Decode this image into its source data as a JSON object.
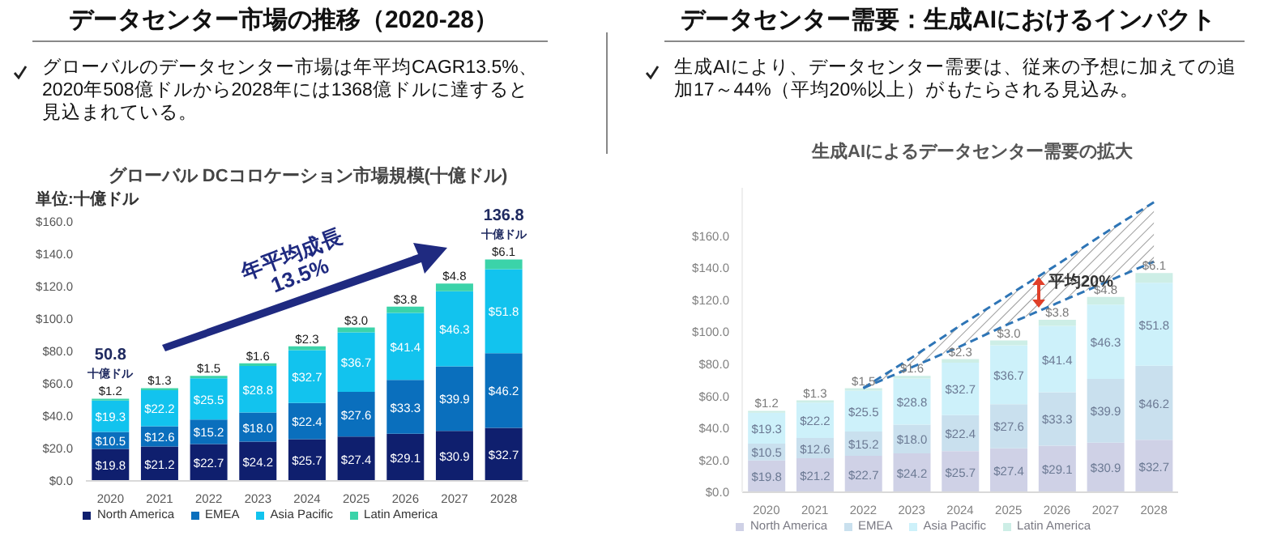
{
  "chart_data": [
    {
      "type": "bar",
      "title": "データセンター市場の推移（2020-28）",
      "subtitle": "グローバル DCコロケーション市場規模(十億ドル)",
      "annotations": [
        "グローバルのデータセンター市場は年平均CAGR13.5%、2020年508億ドルから2028年には1368億ドルに達すると見込まれている。",
        "単位:十億ドル",
        "年平均成長\n13.5%",
        {
          "text": "50.8\n十億ドル",
          "x": "2020",
          "y": 50.8
        },
        {
          "text": "136.8\n十億ドル",
          "x": "2028",
          "y": 136.8
        }
      ],
      "categories": [
        "2020",
        "2021",
        "2022",
        "2023",
        "2024",
        "2025",
        "2026",
        "2027",
        "2028"
      ],
      "stacked": true,
      "legend": "bottom",
      "grid": false,
      "ylim": [
        0,
        160
      ],
      "yticks": [
        {
          "value": 0,
          "label": "$0.0"
        },
        {
          "value": 20,
          "label": "$20.0"
        },
        {
          "value": 40,
          "label": "$40.0"
        },
        {
          "value": 60,
          "label": "$60.0"
        },
        {
          "value": 80,
          "label": "$80.0"
        },
        {
          "value": 100,
          "label": "$100.0"
        },
        {
          "value": 120,
          "label": "$120.0"
        },
        {
          "value": 140,
          "label": "$140.0"
        },
        {
          "value": 160,
          "label": "$160.0"
        }
      ],
      "series": [
        {
          "name": "North America",
          "color": "#0f1f6e",
          "values": [
            19.8,
            21.2,
            22.7,
            24.2,
            25.7,
            27.4,
            29.1,
            30.9,
            32.7
          ],
          "value_labels": [
            "$19.8",
            "$21.2",
            "$22.7",
            "$24.2",
            "$25.7",
            "$27.4",
            "$29.1",
            "$30.9",
            "$32.7"
          ]
        },
        {
          "name": "EMEA",
          "color": "#0a6fbd",
          "values": [
            10.5,
            12.6,
            15.2,
            18.0,
            22.4,
            27.6,
            33.3,
            39.9,
            46.2
          ],
          "value_labels": [
            "$10.5",
            "$12.6",
            "$15.2",
            "$18.0",
            "$22.4",
            "$27.6",
            "$33.3",
            "$39.9",
            "$46.2"
          ]
        },
        {
          "name": "Asia Pacific",
          "color": "#12c3ee",
          "values": [
            19.3,
            22.2,
            25.5,
            28.8,
            32.7,
            36.7,
            41.4,
            46.3,
            51.8
          ],
          "value_labels": [
            "$19.3",
            "$22.2",
            "$25.5",
            "$28.8",
            "$32.7",
            "$36.7",
            "$41.4",
            "$46.3",
            "$51.8"
          ]
        },
        {
          "name": "Latin America",
          "color": "#3bd3a9",
          "values": [
            1.2,
            1.3,
            1.5,
            1.6,
            2.3,
            3.0,
            3.8,
            4.8,
            6.1
          ],
          "value_labels": [
            "$1.2",
            "$1.3",
            "$1.5",
            "$1.6",
            "$2.3",
            "$3.0",
            "$3.8",
            "$4.8",
            "$6.1"
          ]
        }
      ]
    },
    {
      "type": "bar",
      "title": "データセンター需要：生成AIにおけるインパクト",
      "subtitle": "生成AIによるデータセンター需要の拡大",
      "annotations": [
        "生成AIにより、データセンター需要は、従来の予想に加えての追加17～44%（平均20%以上）がもたらされる見込み。",
        "平均20%"
      ],
      "categories": [
        "2020",
        "2021",
        "2022",
        "2023",
        "2024",
        "2025",
        "2026",
        "2027",
        "2028"
      ],
      "stacked": true,
      "legend": "bottom",
      "grid": false,
      "ylim": [
        0,
        190
      ],
      "yticks": [
        {
          "value": 0,
          "label": "$0.0"
        },
        {
          "value": 20,
          "label": "$20.0"
        },
        {
          "value": 40,
          "label": "$40.0"
        },
        {
          "value": 60,
          "label": "$60.0"
        },
        {
          "value": 80,
          "label": "$80.0"
        },
        {
          "value": 100,
          "label": "$100.0"
        },
        {
          "value": 120,
          "label": "$120.0"
        },
        {
          "value": 140,
          "label": "$140.0"
        },
        {
          "value": 160,
          "label": "$160.0"
        }
      ],
      "series": [
        {
          "name": "North America",
          "color": "#cfd1e6",
          "values": [
            19.8,
            21.2,
            22.7,
            24.2,
            25.7,
            27.4,
            29.1,
            30.9,
            32.7
          ],
          "value_labels": [
            "$19.8",
            "$21.2",
            "$22.7",
            "$24.2",
            "$25.7",
            "$27.4",
            "$29.1",
            "$30.9",
            "$32.7"
          ]
        },
        {
          "name": "EMEA",
          "color": "#c9e0ee",
          "values": [
            10.5,
            12.6,
            15.2,
            18.0,
            22.4,
            27.6,
            33.3,
            39.9,
            46.2
          ],
          "value_labels": [
            "$10.5",
            "$12.6",
            "$15.2",
            "$18.0",
            "$22.4",
            "$27.6",
            "$33.3",
            "$39.9",
            "$46.2"
          ]
        },
        {
          "name": "Asia Pacific",
          "color": "#cdf1fa",
          "values": [
            19.3,
            22.2,
            25.5,
            28.8,
            32.7,
            36.7,
            41.4,
            46.3,
            51.8
          ],
          "value_labels": [
            "$19.3",
            "$22.2",
            "$25.5",
            "$28.8",
            "$32.7",
            "$36.7",
            "$41.4",
            "$46.3",
            "$51.8"
          ]
        },
        {
          "name": "Latin America",
          "color": "#cdeee6",
          "values": [
            1.2,
            1.3,
            1.5,
            1.6,
            2.3,
            3.0,
            3.8,
            4.8,
            6.1
          ],
          "value_labels": [
            "$1.2",
            "$1.3",
            "$1.5",
            "$1.6",
            "$2.3",
            "$3.0",
            "$3.8",
            "$4.8",
            "$6.1"
          ]
        },
        {
          "type": "line",
          "color": "#2e75b6",
          "line_style": "dashed",
          "values": [
            null,
            null,
            65,
            78,
            91,
            105,
            118,
            131,
            144
          ],
          "lower": [
            null,
            null,
            65,
            78,
            91,
            105,
            118,
            131,
            144
          ],
          "upper": [
            null,
            null,
            65,
            84,
            104,
            123,
            142,
            162,
            181
          ]
        },
        {
          "type": "line",
          "color": "#2e75b6",
          "line_style": "dashed",
          "values": [
            null,
            null,
            65,
            84,
            104,
            123,
            142,
            162,
            181
          ]
        }
      ]
    }
  ]
}
